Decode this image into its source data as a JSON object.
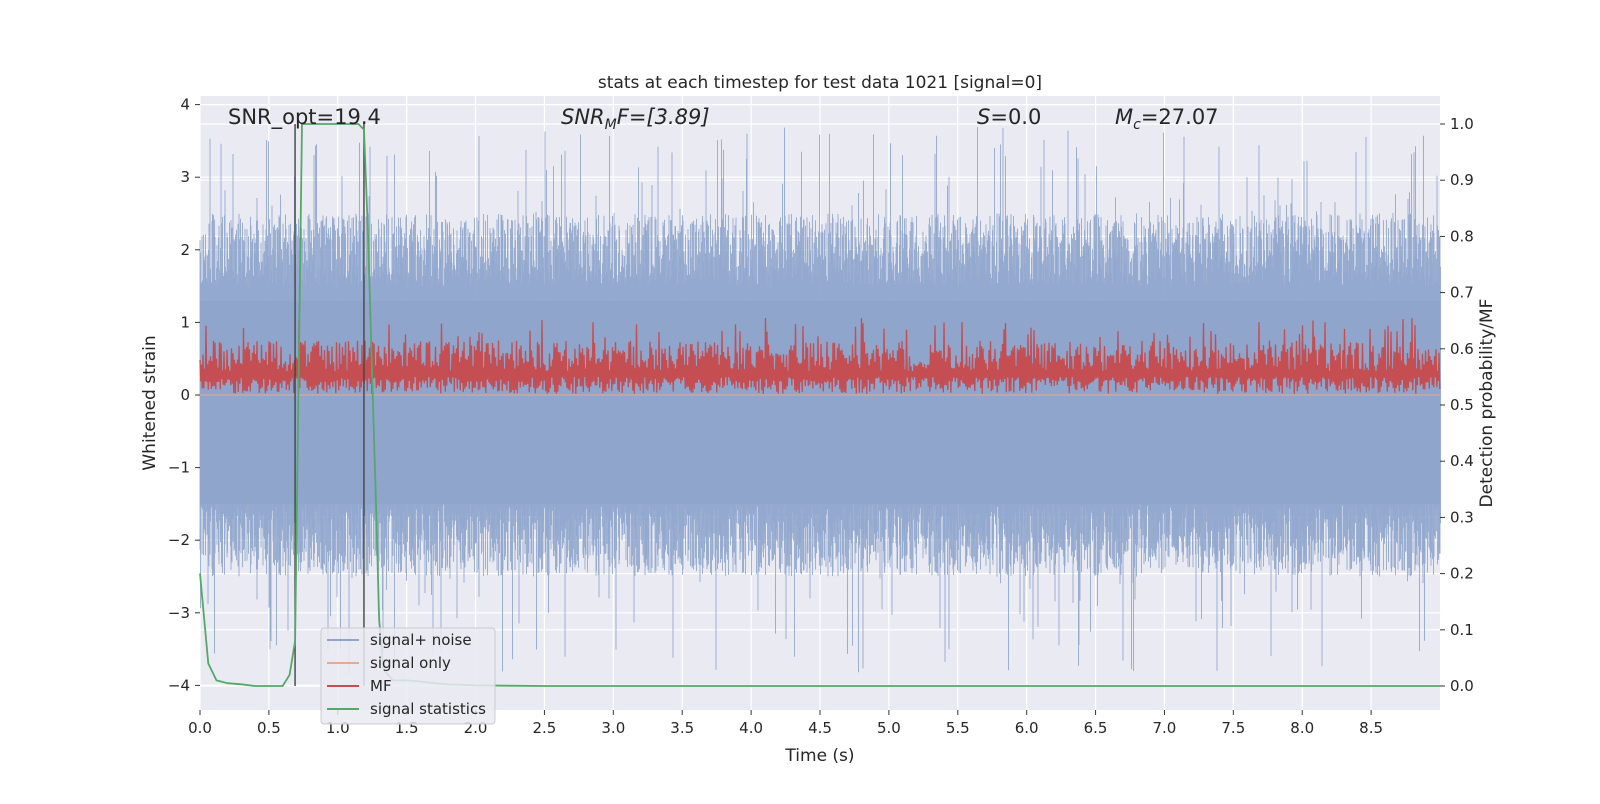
{
  "chart_data": {
    "type": "line",
    "title": "stats at each timestep for test data 1021 [signal=0]",
    "xlabel": "Time (s)",
    "ylabel_left": "Whitened strain",
    "ylabel_right": "Detection probability/MF",
    "xlim": [
      0.0,
      9.0
    ],
    "ylim_left": [
      -4.4,
      4.1
    ],
    "ylim_right": [
      -0.05,
      1.04
    ],
    "xticks": [
      "0.0",
      "0.5",
      "1.0",
      "1.5",
      "2.0",
      "2.5",
      "3.0",
      "3.5",
      "4.0",
      "4.5",
      "5.0",
      "5.5",
      "6.0",
      "6.5",
      "7.0",
      "7.5",
      "8.0",
      "8.5"
    ],
    "yticks_left": [
      "4",
      "3",
      "2",
      "1",
      "0",
      "−1",
      "−2",
      "−3",
      "−4"
    ],
    "yticks_right": [
      "1.0",
      "0.9",
      "0.8",
      "0.7",
      "0.6",
      "0.5",
      "0.4",
      "0.3",
      "0.2",
      "0.1",
      "0.0"
    ],
    "grid": true,
    "legend_placement": "lower-left",
    "annotations": {
      "snr_opt": "SNR_opt=19.4",
      "snr_mf": "SNR_MF=[3.89]",
      "s_value": "S=0.0",
      "mc_value": "M_c=27.07"
    },
    "annotation_parts": {
      "snr_mf_base": "SNR",
      "snr_mf_sub": "M",
      "snr_mf_rest": "F=[3.89]",
      "s_base": "S",
      "s_rest": "=0.0",
      "mc_base": "M",
      "mc_sub": "c",
      "mc_rest": "=27.07"
    },
    "markers_x": [
      0.69,
      1.19
    ],
    "series": [
      {
        "name": "signal+ noise",
        "axis": "left",
        "style": "whitened noise, envelope approx ±2.5 with spikes to ±3.7",
        "color": "#8fa5cc",
        "envelope": {
          "typical": 2.5,
          "spike_max": 3.7,
          "spike_min": -3.9
        }
      },
      {
        "name": "signal only",
        "axis": "left",
        "style": "flat line",
        "color": "#e8a98d",
        "x": [
          0.0,
          9.0
        ],
        "y": [
          0.0,
          0.0
        ]
      },
      {
        "name": "MF",
        "axis": "right",
        "style": "noisy band between ~0.52 and ~0.63",
        "color": "#c44e52",
        "band": [
          0.52,
          0.63
        ]
      },
      {
        "name": "signal statistics",
        "axis": "right",
        "color": "#55a868",
        "x": [
          0.0,
          0.06,
          0.12,
          0.2,
          0.3,
          0.4,
          0.5,
          0.6,
          0.65,
          0.69,
          0.74,
          0.8,
          0.9,
          1.0,
          1.1,
          1.15,
          1.19,
          1.22,
          1.25,
          1.28,
          1.3,
          1.33,
          1.4,
          1.5,
          1.6,
          1.7,
          1.8,
          2.0,
          2.5,
          9.0
        ],
        "y": [
          0.2,
          0.04,
          0.01,
          0.005,
          0.003,
          0.0,
          0.0,
          0.0,
          0.02,
          0.08,
          1.0,
          1.0,
          1.0,
          1.0,
          1.0,
          1.0,
          0.99,
          0.8,
          0.55,
          0.3,
          0.12,
          0.03,
          0.01,
          0.01,
          0.008,
          0.005,
          0.003,
          0.001,
          0.0,
          0.0
        ]
      }
    ]
  }
}
